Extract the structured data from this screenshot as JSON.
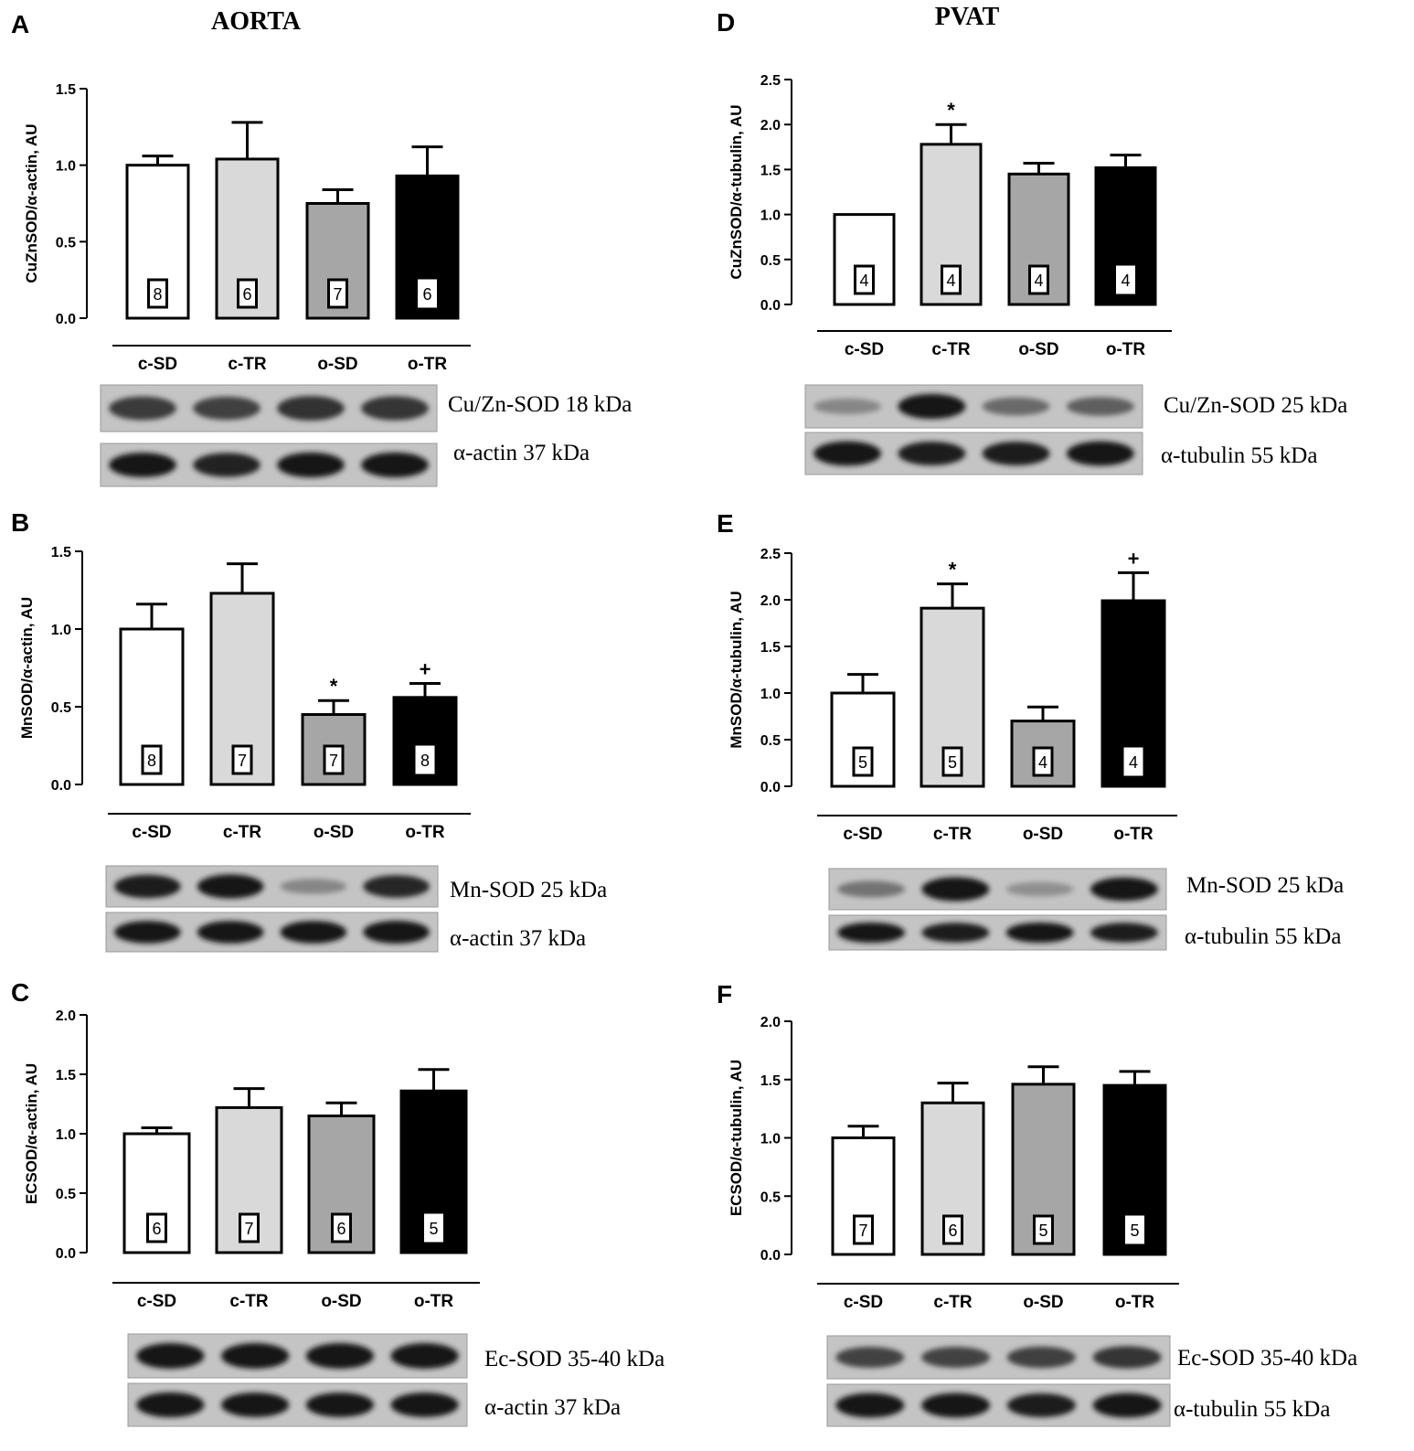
{
  "columns": [
    {
      "title": "AORTA"
    },
    {
      "title": "PVAT"
    }
  ],
  "colors": {
    "c-SD": "#ffffff",
    "c-TR": "#d9d9d9",
    "o-SD": "#a6a6a6",
    "o-TR": "#000000"
  },
  "chart_data": [
    {
      "panel": "A",
      "type": "bar",
      "ylabel": "CuZnSOD/α-actin, AU",
      "ylim": [
        0,
        1.5
      ],
      "yticks": [
        "0.0",
        "0.5",
        "1.0",
        "1.5"
      ],
      "categories": [
        "c-SD",
        "c-TR",
        "o-SD",
        "o-TR"
      ],
      "values": [
        1.0,
        1.04,
        0.75,
        0.93
      ],
      "errors": [
        0.06,
        0.24,
        0.09,
        0.19
      ],
      "n": [
        "8",
        "6",
        "7",
        "6"
      ],
      "sig": [
        "",
        "",
        "",
        ""
      ],
      "blots": [
        "Cu/Zn-SOD 18 kDa",
        "α-actin 37 kDa"
      ]
    },
    {
      "panel": "B",
      "type": "bar",
      "ylabel": "MnSOD/α-actin, AU",
      "ylim": [
        0,
        1.5
      ],
      "yticks": [
        "0.0",
        "0.5",
        "1.0",
        "1.5"
      ],
      "categories": [
        "c-SD",
        "c-TR",
        "o-SD",
        "o-TR"
      ],
      "values": [
        1.0,
        1.23,
        0.45,
        0.56
      ],
      "errors": [
        0.16,
        0.19,
        0.09,
        0.09
      ],
      "n": [
        "8",
        "7",
        "7",
        "8"
      ],
      "sig": [
        "",
        "",
        "*",
        "+"
      ],
      "blots": [
        "Mn-SOD 25 kDa",
        "α-actin 37 kDa"
      ]
    },
    {
      "panel": "C",
      "type": "bar",
      "ylabel": "ECSOD/α-actin, AU",
      "ylim": [
        0,
        2.0
      ],
      "yticks": [
        "0.0",
        "0.5",
        "1.0",
        "1.5",
        "2.0"
      ],
      "categories": [
        "c-SD",
        "c-TR",
        "o-SD",
        "o-TR"
      ],
      "values": [
        1.0,
        1.22,
        1.15,
        1.36
      ],
      "errors": [
        0.05,
        0.16,
        0.11,
        0.18
      ],
      "n": [
        "6",
        "7",
        "6",
        "5"
      ],
      "sig": [
        "",
        "",
        "",
        ""
      ],
      "blots": [
        "Ec-SOD 35-40 kDa",
        "α-actin 37 kDa"
      ]
    },
    {
      "panel": "D",
      "type": "bar",
      "ylabel": "CuZnSOD/α-tubulin, AU",
      "ylim": [
        0,
        2.5
      ],
      "yticks": [
        "0.0",
        "0.5",
        "1.0",
        "1.5",
        "2.0",
        "2.5"
      ],
      "categories": [
        "c-SD",
        "c-TR",
        "o-SD",
        "o-TR"
      ],
      "values": [
        1.0,
        1.78,
        1.45,
        1.52
      ],
      "errors": [
        0.0,
        0.22,
        0.12,
        0.14
      ],
      "n": [
        "4",
        "4",
        "4",
        "4"
      ],
      "sig": [
        "",
        "*",
        "",
        ""
      ],
      "blots": [
        "Cu/Zn-SOD 25 kDa",
        "α-tubulin 55 kDa"
      ]
    },
    {
      "panel": "E",
      "type": "bar",
      "ylabel": "MnSOD/α-tubulin, AU",
      "ylim": [
        0,
        2.5
      ],
      "yticks": [
        "0.0",
        "0.5",
        "1.0",
        "1.5",
        "2.0",
        "2.5"
      ],
      "categories": [
        "c-SD",
        "c-TR",
        "o-SD",
        "o-TR"
      ],
      "values": [
        1.0,
        1.91,
        0.7,
        1.99
      ],
      "errors": [
        0.2,
        0.26,
        0.15,
        0.3
      ],
      "n": [
        "5",
        "5",
        "4",
        "4"
      ],
      "sig": [
        "",
        "*",
        "",
        "+"
      ],
      "blots": [
        "Mn-SOD 25 kDa",
        "α-tubulin 55 kDa"
      ]
    },
    {
      "panel": "F",
      "type": "bar",
      "ylabel": "ECSOD/α-tubulin, AU",
      "ylim": [
        0,
        2.0
      ],
      "yticks": [
        "0.0",
        "0.5",
        "1.0",
        "1.5",
        "2.0"
      ],
      "categories": [
        "c-SD",
        "c-TR",
        "o-SD",
        "o-TR"
      ],
      "values": [
        1.0,
        1.3,
        1.46,
        1.45
      ],
      "errors": [
        0.1,
        0.17,
        0.15,
        0.12
      ],
      "n": [
        "7",
        "6",
        "5",
        "5"
      ],
      "sig": [
        "",
        "",
        "",
        ""
      ],
      "blots": [
        "Ec-SOD 35-40 kDa",
        "α-tubulin 55 kDa"
      ]
    }
  ]
}
